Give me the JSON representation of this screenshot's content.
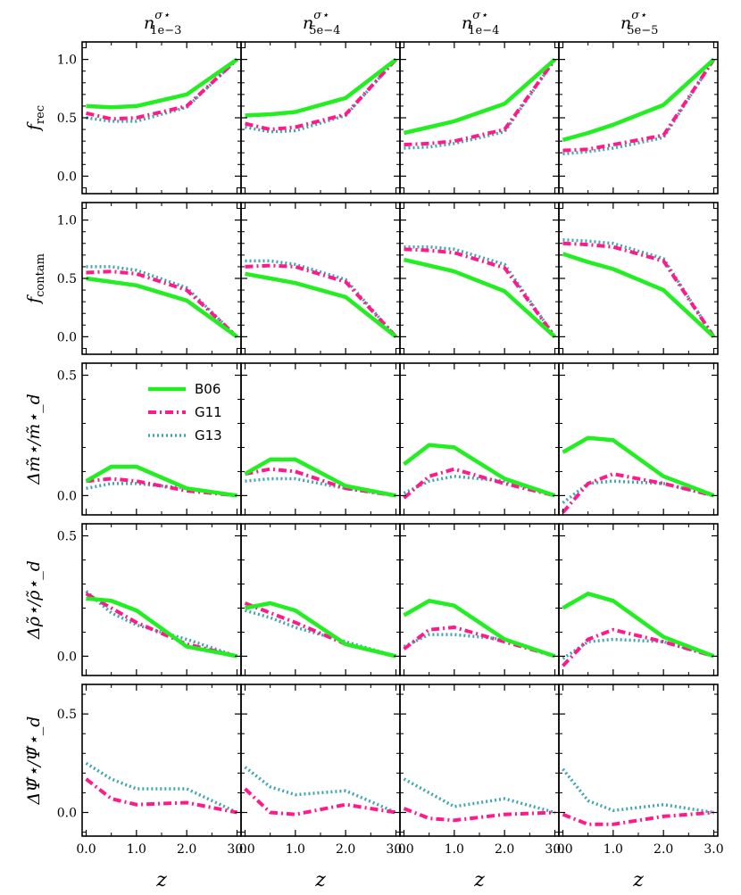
{
  "chart_data": {
    "type": "line",
    "layout": "grid 5 rows x 4 columns, shared axes",
    "x": [
      0.0,
      0.5,
      1.0,
      2.0,
      3.0
    ],
    "xlabel": "z",
    "xticks": [
      "0.0",
      "1.0",
      "2.0",
      "3.0"
    ],
    "columns": [
      {
        "label": "n",
        "sup": "σ⋆",
        "sub": "1e−3"
      },
      {
        "label": "n",
        "sup": "σ⋆",
        "sub": "5e−4"
      },
      {
        "label": "n",
        "sup": "σ⋆",
        "sub": "1e−4"
      },
      {
        "label": "n",
        "sup": "σ⋆",
        "sub": "5e−5"
      }
    ],
    "legend": {
      "location": "upper-left, third row first column",
      "entries": [
        "B06",
        "G11",
        "G13"
      ]
    },
    "series_colors": {
      "B06": "#22ee22",
      "G11": "#ff1a8c",
      "G13": "#3fa6b5"
    },
    "series_styles": {
      "B06": "solid",
      "G11": "dash-dot",
      "G13": "dotted"
    },
    "rows": [
      {
        "ylabel_main": "f",
        "ylabel_sub": "rec",
        "ylim": [
          -0.15,
          1.15
        ],
        "yticks": [
          0.0,
          0.5,
          1.0
        ],
        "ytick_labels": [
          "0.0",
          "0.5",
          "1.0"
        ],
        "panels": [
          {
            "B06": [
              0.6,
              0.59,
              0.6,
              0.7,
              1.0
            ],
            "G11": [
              0.54,
              0.49,
              0.5,
              0.6,
              1.0
            ],
            "G13": [
              0.5,
              0.47,
              0.47,
              0.59,
              1.0
            ]
          },
          {
            "B06": [
              0.52,
              0.53,
              0.55,
              0.67,
              1.0
            ],
            "G11": [
              0.45,
              0.4,
              0.42,
              0.53,
              1.0
            ],
            "G13": [
              0.42,
              0.38,
              0.39,
              0.52,
              1.0
            ]
          },
          {
            "B06": [
              0.37,
              0.42,
              0.47,
              0.62,
              1.0
            ],
            "G11": [
              0.27,
              0.28,
              0.3,
              0.4,
              1.0
            ],
            "G13": [
              0.24,
              0.25,
              0.28,
              0.38,
              1.0
            ]
          },
          {
            "B06": [
              0.31,
              0.37,
              0.44,
              0.61,
              1.0
            ],
            "G11": [
              0.22,
              0.23,
              0.27,
              0.35,
              1.0
            ],
            "G13": [
              0.19,
              0.21,
              0.24,
              0.33,
              1.0
            ]
          }
        ]
      },
      {
        "ylabel_main": "f",
        "ylabel_sub": "contam",
        "ylim": [
          -0.15,
          1.15
        ],
        "yticks": [
          0.0,
          0.5,
          1.0
        ],
        "ytick_labels": [
          "0.0",
          "0.5",
          "1.0"
        ],
        "panels": [
          {
            "B06": [
              0.5,
              0.47,
              0.44,
              0.31,
              0.0
            ],
            "G11": [
              0.55,
              0.56,
              0.54,
              0.4,
              0.0
            ],
            "G13": [
              0.6,
              0.6,
              0.57,
              0.42,
              0.0
            ]
          },
          {
            "B06": [
              0.54,
              0.5,
              0.46,
              0.34,
              0.0
            ],
            "G11": [
              0.6,
              0.61,
              0.6,
              0.47,
              0.0
            ],
            "G13": [
              0.65,
              0.65,
              0.62,
              0.49,
              0.0
            ]
          },
          {
            "B06": [
              0.66,
              0.61,
              0.56,
              0.39,
              0.0
            ],
            "G11": [
              0.75,
              0.74,
              0.72,
              0.59,
              0.0
            ],
            "G13": [
              0.77,
              0.77,
              0.75,
              0.62,
              0.0
            ]
          },
          {
            "B06": [
              0.71,
              0.64,
              0.58,
              0.4,
              0.0
            ],
            "G11": [
              0.8,
              0.79,
              0.77,
              0.65,
              0.0
            ],
            "G13": [
              0.83,
              0.82,
              0.8,
              0.67,
              0.0
            ]
          }
        ]
      },
      {
        "ylabel_main": "Δm̃⋆/m̃⋆_d",
        "ylabel_sub": "",
        "ylim": [
          -0.08,
          0.55
        ],
        "yticks": [
          0.0,
          0.5
        ],
        "ytick_labels": [
          "0.0",
          "0.5"
        ],
        "panels": [
          {
            "B06": [
              0.06,
              0.12,
              0.12,
              0.03,
              0.0
            ],
            "G11": [
              0.06,
              0.07,
              0.06,
              0.02,
              0.0
            ],
            "G13": [
              0.03,
              0.05,
              0.05,
              0.03,
              0.0
            ]
          },
          {
            "B06": [
              0.09,
              0.15,
              0.15,
              0.04,
              0.0
            ],
            "G11": [
              0.09,
              0.11,
              0.1,
              0.03,
              0.0
            ],
            "G13": [
              0.06,
              0.07,
              0.07,
              0.03,
              0.0
            ]
          },
          {
            "B06": [
              0.13,
              0.21,
              0.2,
              0.07,
              0.0
            ],
            "G11": [
              -0.01,
              0.08,
              0.11,
              0.05,
              0.0
            ],
            "G13": [
              0.01,
              0.06,
              0.08,
              0.06,
              0.0
            ]
          },
          {
            "B06": [
              0.18,
              0.24,
              0.23,
              0.08,
              0.0
            ],
            "G11": [
              -0.07,
              0.05,
              0.09,
              0.05,
              0.0
            ],
            "G13": [
              -0.03,
              0.05,
              0.06,
              0.05,
              0.0
            ]
          }
        ]
      },
      {
        "ylabel_main": "Δρ̃⋆/ρ̃⋆_d",
        "ylabel_sub": "",
        "ylim": [
          -0.08,
          0.55
        ],
        "yticks": [
          0.0,
          0.5
        ],
        "ytick_labels": [
          "0.0",
          "0.5"
        ],
        "panels": [
          {
            "B06": [
              0.24,
              0.23,
              0.19,
              0.04,
              0.0
            ],
            "G11": [
              0.26,
              0.2,
              0.14,
              0.05,
              0.0
            ],
            "G13": [
              0.27,
              0.18,
              0.13,
              0.07,
              0.0
            ]
          },
          {
            "B06": [
              0.2,
              0.22,
              0.19,
              0.05,
              0.0
            ],
            "G11": [
              0.22,
              0.18,
              0.14,
              0.05,
              0.0
            ],
            "G13": [
              0.19,
              0.16,
              0.12,
              0.06,
              0.0
            ]
          },
          {
            "B06": [
              0.17,
              0.23,
              0.21,
              0.07,
              0.0
            ],
            "G11": [
              0.03,
              0.11,
              0.12,
              0.06,
              0.0
            ],
            "G13": [
              0.04,
              0.09,
              0.09,
              0.07,
              0.0
            ]
          },
          {
            "B06": [
              0.2,
              0.26,
              0.23,
              0.08,
              0.0
            ],
            "G11": [
              -0.04,
              0.07,
              0.11,
              0.06,
              0.0
            ],
            "G13": [
              -0.01,
              0.06,
              0.07,
              0.06,
              0.0
            ]
          }
        ]
      },
      {
        "ylabel_main": "ΔΨ̃⋆/Ψ̃⋆_d",
        "ylabel_sub": "",
        "ylim": [
          -0.12,
          0.65
        ],
        "yticks": [
          0.0,
          0.5
        ],
        "ytick_labels": [
          "0.0",
          "0.5"
        ],
        "panels": [
          {
            "B06": null,
            "G11": [
              0.17,
              0.07,
              0.04,
              0.05,
              0.0
            ],
            "G13": [
              0.25,
              0.17,
              0.12,
              0.12,
              0.0
            ]
          },
          {
            "B06": null,
            "G11": [
              0.12,
              0.0,
              -0.01,
              0.04,
              0.0
            ],
            "G13": [
              0.23,
              0.13,
              0.09,
              0.11,
              0.0
            ]
          },
          {
            "B06": null,
            "G11": [
              0.02,
              -0.03,
              -0.04,
              -0.01,
              0.0
            ],
            "G13": [
              0.17,
              0.1,
              0.03,
              0.07,
              0.0
            ]
          },
          {
            "B06": null,
            "G11": [
              -0.01,
              -0.06,
              -0.06,
              -0.02,
              0.0
            ],
            "G13": [
              0.22,
              0.06,
              0.01,
              0.04,
              0.0
            ]
          }
        ]
      }
    ]
  }
}
